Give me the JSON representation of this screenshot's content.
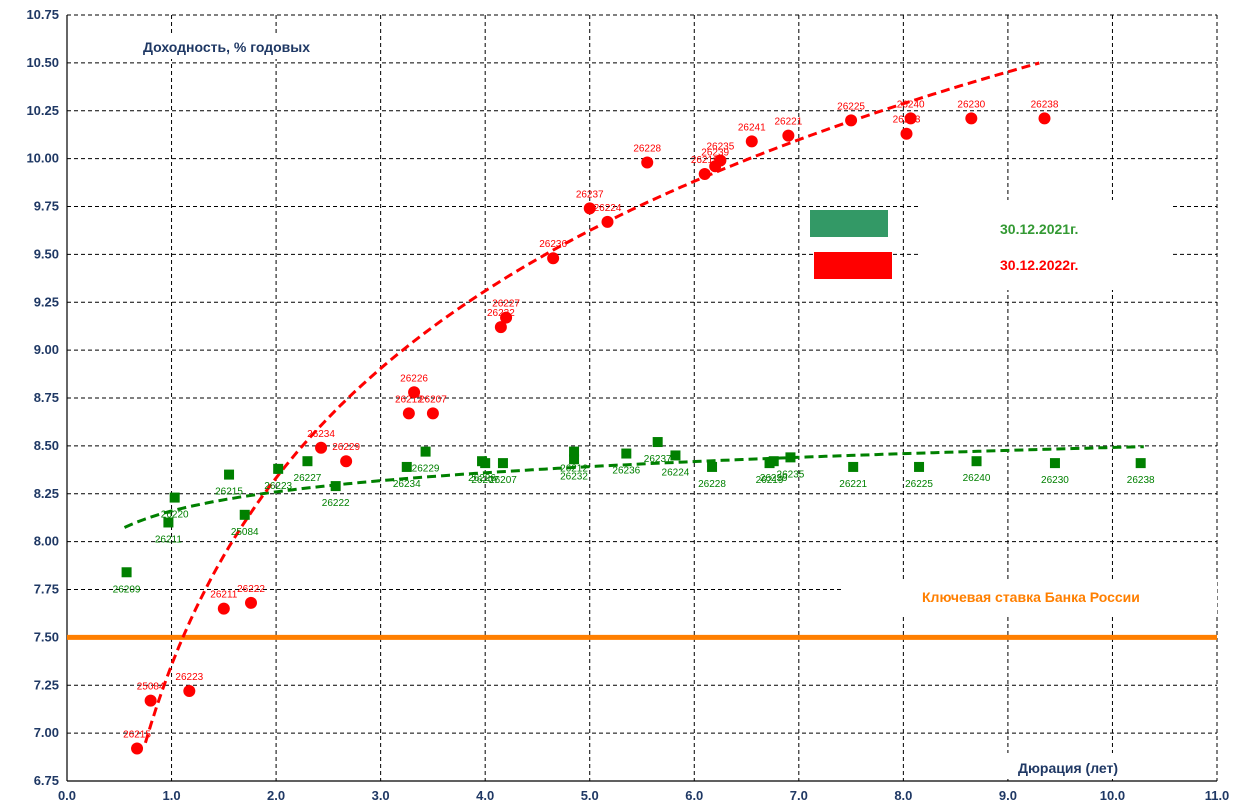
{
  "chart_data": {
    "type": "scatter",
    "title": "Доходность, % годовых",
    "xlabel": "Дюрация (лет)",
    "ylabel": "",
    "xlim": [
      0.0,
      11.0
    ],
    "ylim": [
      6.75,
      10.75
    ],
    "x_ticks": [
      "0.0",
      "1.0",
      "2.0",
      "3.0",
      "4.0",
      "5.0",
      "6.0",
      "7.0",
      "8.0",
      "9.0",
      "10.0",
      "11.0"
    ],
    "y_ticks": [
      "6.75",
      "7.00",
      "7.25",
      "7.50",
      "7.75",
      "8.00",
      "8.25",
      "8.50",
      "8.75",
      "9.00",
      "9.25",
      "9.50",
      "9.75",
      "10.00",
      "10.25",
      "10.50",
      "10.75"
    ],
    "grid": true,
    "legend_position": "right",
    "series": [
      {
        "name": "30.12.2021г.",
        "color": "#008000",
        "marker": "square",
        "points": [
          {
            "x": 0.57,
            "y": 7.84,
            "label": "26209"
          },
          {
            "x": 0.97,
            "y": 8.1,
            "label": "26211"
          },
          {
            "x": 1.03,
            "y": 8.23,
            "label": "26220"
          },
          {
            "x": 1.55,
            "y": 8.35,
            "label": "26215"
          },
          {
            "x": 1.7,
            "y": 8.14,
            "label": "25084"
          },
          {
            "x": 2.02,
            "y": 8.38,
            "label": "26223"
          },
          {
            "x": 2.3,
            "y": 8.42,
            "label": "26227"
          },
          {
            "x": 2.57,
            "y": 8.29,
            "label": "26222"
          },
          {
            "x": 3.25,
            "y": 8.39,
            "label": "26234"
          },
          {
            "x": 3.43,
            "y": 8.47,
            "label": "26229"
          },
          {
            "x": 3.97,
            "y": 8.42,
            "label": "26226"
          },
          {
            "x": 4.0,
            "y": 8.41,
            "label": "26207"
          },
          {
            "x": 4.17,
            "y": 8.41,
            "label": "26207"
          },
          {
            "x": 4.85,
            "y": 8.47,
            "label": "26212"
          },
          {
            "x": 4.85,
            "y": 8.43,
            "label": "26232"
          },
          {
            "x": 5.35,
            "y": 8.46,
            "label": "26236"
          },
          {
            "x": 5.65,
            "y": 8.52,
            "label": "26237"
          },
          {
            "x": 5.82,
            "y": 8.45,
            "label": "26224"
          },
          {
            "x": 6.17,
            "y": 8.39,
            "label": "26228"
          },
          {
            "x": 6.72,
            "y": 8.41,
            "label": "26219"
          },
          {
            "x": 6.76,
            "y": 8.42,
            "label": "26239"
          },
          {
            "x": 6.92,
            "y": 8.44,
            "label": "26235"
          },
          {
            "x": 7.52,
            "y": 8.39,
            "label": "26221"
          },
          {
            "x": 8.15,
            "y": 8.39,
            "label": "26225"
          },
          {
            "x": 8.7,
            "y": 8.42,
            "label": "26240"
          },
          {
            "x": 9.45,
            "y": 8.41,
            "label": "26230"
          },
          {
            "x": 10.27,
            "y": 8.41,
            "label": "26238"
          }
        ]
      },
      {
        "name": "30.12.2022г.",
        "color": "#ff0000",
        "marker": "circle",
        "points": [
          {
            "x": 0.67,
            "y": 6.92,
            "label": "26215"
          },
          {
            "x": 0.8,
            "y": 7.17,
            "label": "25084"
          },
          {
            "x": 1.17,
            "y": 7.22,
            "label": "26223"
          },
          {
            "x": 1.5,
            "y": 7.65,
            "label": "26211"
          },
          {
            "x": 1.76,
            "y": 7.68,
            "label": "26222"
          },
          {
            "x": 2.43,
            "y": 8.49,
            "label": "26234"
          },
          {
            "x": 2.67,
            "y": 8.42,
            "label": "26229"
          },
          {
            "x": 3.27,
            "y": 8.67,
            "label": "26212"
          },
          {
            "x": 3.32,
            "y": 8.78,
            "label": "26226"
          },
          {
            "x": 3.5,
            "y": 8.67,
            "label": "26207"
          },
          {
            "x": 4.15,
            "y": 9.12,
            "label": "26232"
          },
          {
            "x": 4.2,
            "y": 9.17,
            "label": "26227"
          },
          {
            "x": 4.65,
            "y": 9.48,
            "label": "26236"
          },
          {
            "x": 5.0,
            "y": 9.74,
            "label": "26237"
          },
          {
            "x": 5.17,
            "y": 9.67,
            "label": "26224"
          },
          {
            "x": 5.55,
            "y": 9.98,
            "label": "26228"
          },
          {
            "x": 6.1,
            "y": 9.92,
            "label": "26219"
          },
          {
            "x": 6.2,
            "y": 9.96,
            "label": "26239"
          },
          {
            "x": 6.25,
            "y": 9.99,
            "label": "26235"
          },
          {
            "x": 6.55,
            "y": 10.09,
            "label": "26241"
          },
          {
            "x": 6.9,
            "y": 10.12,
            "label": "26221"
          },
          {
            "x": 7.5,
            "y": 10.2,
            "label": "26225"
          },
          {
            "x": 8.03,
            "y": 10.13,
            "label": "26233"
          },
          {
            "x": 8.07,
            "y": 10.21,
            "label": "26240"
          },
          {
            "x": 8.65,
            "y": 10.21,
            "label": "26230"
          },
          {
            "x": 9.35,
            "y": 10.21,
            "label": "26238"
          }
        ]
      }
    ],
    "trendlines": [
      {
        "series": "30.12.2021г.",
        "type": "log",
        "a": 8.16,
        "b": 0.144,
        "x_range": [
          0.55,
          10.3
        ],
        "color": "#008000"
      },
      {
        "series": "30.12.2022г.",
        "type": "log",
        "a": 7.355,
        "b": 1.41,
        "x_range": [
          0.75,
          9.3
        ],
        "color": "#ff0000"
      }
    ],
    "reference_lines": [
      {
        "y": 7.5,
        "color": "#ff7f00",
        "label": "Ключевая ставка Банка России"
      }
    ]
  }
}
